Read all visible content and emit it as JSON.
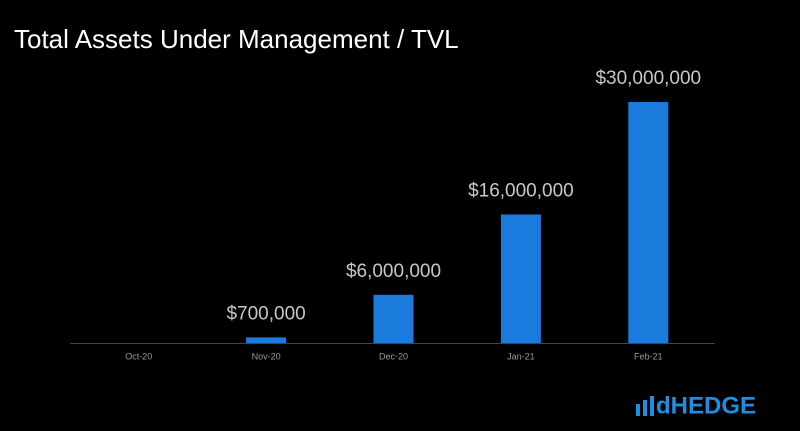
{
  "chart_data": {
    "type": "bar",
    "title": "Total Assets Under Management / TVL",
    "categories": [
      "Oct-20",
      "Nov-20",
      "Dec-20",
      "Jan-21",
      "Feb-21"
    ],
    "values": [
      0,
      700000,
      6000000,
      16000000,
      30000000
    ],
    "value_labels": [
      null,
      "$700,000",
      "$6,000,000",
      "$16,000,000",
      "$30,000,000"
    ],
    "color": "#1b7bdc"
  },
  "logo": "dHEDGE"
}
